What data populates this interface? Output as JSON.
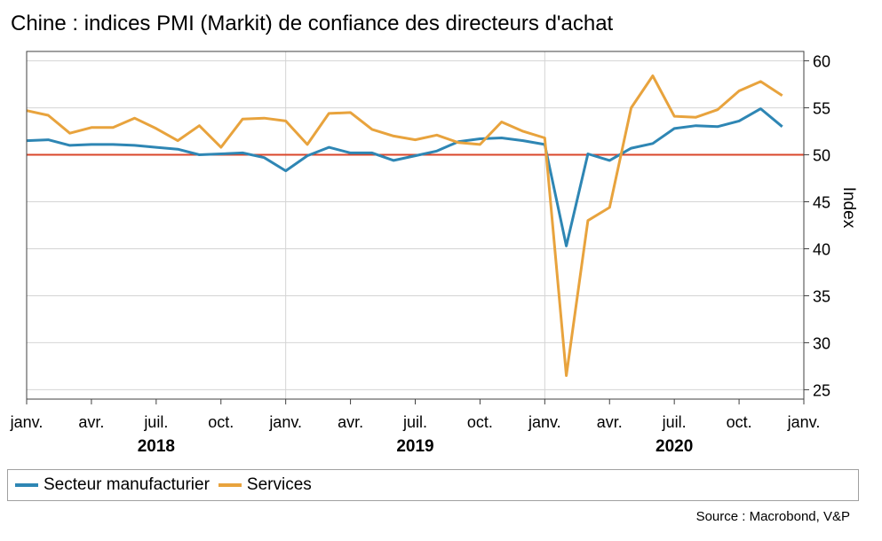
{
  "title": "Chine : indices PMI (Markit) de confiance des directeurs d'achat",
  "source": "Source : Macrobond, V&P",
  "colors": {
    "manufacturing": "#2e86b4",
    "services": "#e8a33d",
    "reference_line": "#d9462a",
    "grid": "#d4d4d4",
    "frame": "#404040"
  },
  "chart_data": {
    "type": "line",
    "ylabel": "Index",
    "y_axis_position": "right",
    "ylim": [
      24,
      61
    ],
    "yticks": [
      25,
      30,
      35,
      40,
      45,
      50,
      55,
      60
    ],
    "reference_line": 50,
    "grid": true,
    "legend_position": "bottom",
    "x_start": "2018-01",
    "x_end": "2021-01",
    "x_ticks": [
      {
        "label": "janv.",
        "date": "2018-01"
      },
      {
        "label": "avr.",
        "date": "2018-04"
      },
      {
        "label": "juil.",
        "date": "2018-07"
      },
      {
        "label": "oct.",
        "date": "2018-10"
      },
      {
        "label": "janv.",
        "date": "2019-01"
      },
      {
        "label": "avr.",
        "date": "2019-04"
      },
      {
        "label": "juil.",
        "date": "2019-07"
      },
      {
        "label": "oct.",
        "date": "2019-10"
      },
      {
        "label": "janv.",
        "date": "2020-01"
      },
      {
        "label": "avr.",
        "date": "2020-04"
      },
      {
        "label": "juil.",
        "date": "2020-07"
      },
      {
        "label": "oct.",
        "date": "2020-10"
      },
      {
        "label": "janv.",
        "date": "2021-01"
      }
    ],
    "years": [
      {
        "label": "2018",
        "date": "2018-07"
      },
      {
        "label": "2019",
        "date": "2019-07"
      },
      {
        "label": "2020",
        "date": "2020-07"
      }
    ],
    "x": [
      "2018-01",
      "2018-02",
      "2018-03",
      "2018-04",
      "2018-05",
      "2018-06",
      "2018-07",
      "2018-08",
      "2018-09",
      "2018-10",
      "2018-11",
      "2018-12",
      "2019-01",
      "2019-02",
      "2019-03",
      "2019-04",
      "2019-05",
      "2019-06",
      "2019-07",
      "2019-08",
      "2019-09",
      "2019-10",
      "2019-11",
      "2019-12",
      "2020-01",
      "2020-02",
      "2020-03",
      "2020-04",
      "2020-05",
      "2020-06",
      "2020-07",
      "2020-08",
      "2020-09",
      "2020-10",
      "2020-11",
      "2020-12"
    ],
    "series": [
      {
        "name": "Secteur manufacturier",
        "values": [
          51.5,
          51.6,
          51.0,
          51.1,
          51.1,
          51.0,
          50.8,
          50.6,
          50.0,
          50.1,
          50.2,
          49.7,
          48.3,
          49.9,
          50.8,
          50.2,
          50.2,
          49.4,
          49.9,
          50.4,
          51.4,
          51.7,
          51.8,
          51.5,
          51.1,
          40.3,
          50.1,
          49.4,
          50.7,
          51.2,
          52.8,
          53.1,
          53.0,
          53.6,
          54.9,
          53.0
        ]
      },
      {
        "name": "Services",
        "values": [
          54.7,
          54.2,
          52.3,
          52.9,
          52.9,
          53.9,
          52.8,
          51.5,
          53.1,
          50.8,
          53.8,
          53.9,
          53.6,
          51.1,
          54.4,
          54.5,
          52.7,
          52.0,
          51.6,
          52.1,
          51.3,
          51.1,
          53.5,
          52.5,
          51.8,
          26.5,
          43.0,
          44.4,
          55.0,
          58.4,
          54.1,
          54.0,
          54.8,
          56.8,
          57.8,
          56.3
        ]
      }
    ]
  }
}
